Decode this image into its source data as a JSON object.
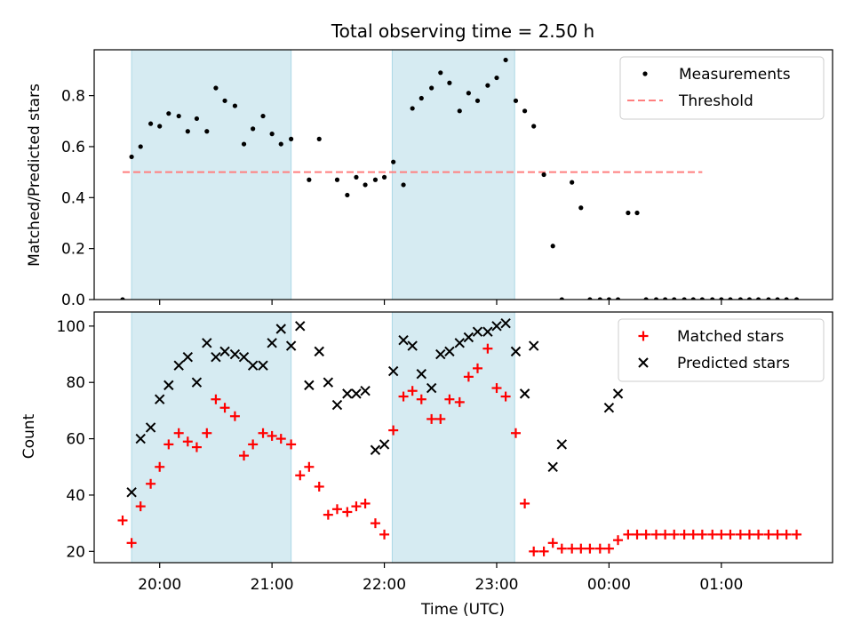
{
  "chart_data": {
    "title": "Total observing time = 2.50 h",
    "type": "scatter",
    "x_tick_labels": [
      "20:00",
      "21:00",
      "22:00",
      "23:00",
      "00:00",
      "01:00"
    ],
    "xlabel": "Time (UTC)",
    "observing_windows_hours": [
      [
        19.75,
        21.17
      ],
      [
        22.07,
        23.16
      ]
    ],
    "window_color": "#add8e6",
    "panels": [
      {
        "ylabel": "Matched/Predicted stars",
        "ylim": [
          0,
          0.98
        ],
        "y_ticks": [
          0.0,
          0.2,
          0.4,
          0.6,
          0.8
        ],
        "y_tick_labels": [
          "0.0",
          "0.2",
          "0.4",
          "0.6",
          "0.8"
        ],
        "legend_position": "top-right",
        "threshold": {
          "name": "Threshold",
          "value": 0.5,
          "x_range": [
            19.67,
            24.83
          ],
          "color": "#ff7f7f"
        },
        "measurements": {
          "name": "Measurements",
          "color": "#000000",
          "x": [
            19.67,
            19.75,
            19.83,
            19.92,
            20.0,
            20.08,
            20.17,
            20.25,
            20.33,
            20.42,
            20.5,
            20.58,
            20.67,
            20.75,
            20.83,
            20.92,
            21.0,
            21.08,
            21.17,
            21.33,
            21.42,
            21.58,
            21.67,
            21.75,
            21.83,
            21.92,
            22.0,
            22.08,
            22.17,
            22.25,
            22.33,
            22.42,
            22.5,
            22.58,
            22.67,
            22.75,
            22.83,
            22.92,
            23.0,
            23.08,
            23.17,
            23.25,
            23.33,
            23.42,
            23.5,
            23.58,
            23.67,
            23.75,
            23.83,
            23.92,
            24.0,
            24.08,
            24.17,
            24.25,
            24.33,
            24.42,
            24.5,
            24.58,
            24.67,
            24.75,
            24.83,
            24.92,
            25.0,
            25.08,
            25.17,
            25.25,
            25.33,
            25.42,
            25.5,
            25.58,
            25.67
          ],
          "y": [
            0.0,
            0.56,
            0.6,
            0.69,
            0.68,
            0.73,
            0.72,
            0.66,
            0.71,
            0.66,
            0.83,
            0.78,
            0.76,
            0.61,
            0.67,
            0.72,
            0.65,
            0.61,
            0.63,
            0.47,
            0.63,
            0.47,
            0.41,
            0.48,
            0.45,
            0.47,
            0.48,
            0.54,
            0.45,
            0.75,
            0.79,
            0.83,
            0.89,
            0.85,
            0.74,
            0.81,
            0.78,
            0.84,
            0.87,
            0.94,
            0.78,
            0.74,
            0.68,
            0.49,
            0.21,
            0.0,
            0.46,
            0.36,
            0.0,
            0.0,
            0.0,
            0.0,
            0.34,
            0.34,
            0.0,
            0.0,
            0.0,
            0.0,
            0.0,
            0.0,
            0.0,
            0.0,
            0.0,
            0.0,
            0.0,
            0.0,
            0.0,
            0.0,
            0.0,
            0.0,
            0.0
          ]
        }
      },
      {
        "ylabel": "Count",
        "ylim": [
          16,
          105
        ],
        "y_ticks": [
          20,
          40,
          60,
          80,
          100
        ],
        "y_tick_labels": [
          "20",
          "40",
          "60",
          "80",
          "100"
        ],
        "legend_position": "top-right",
        "series": [
          {
            "name": "Matched stars",
            "marker": "plus",
            "color": "#ff0000",
            "x": [
              19.67,
              19.75,
              19.83,
              19.92,
              20.0,
              20.08,
              20.17,
              20.25,
              20.33,
              20.42,
              20.5,
              20.58,
              20.67,
              20.75,
              20.83,
              20.92,
              21.0,
              21.08,
              21.17,
              21.25,
              21.33,
              21.42,
              21.5,
              21.58,
              21.67,
              21.75,
              21.83,
              21.92,
              22.0,
              22.08,
              22.17,
              22.25,
              22.33,
              22.42,
              22.5,
              22.58,
              22.67,
              22.75,
              22.83,
              22.92,
              23.0,
              23.08,
              23.17,
              23.25,
              23.33,
              23.42,
              23.5,
              23.58,
              23.67,
              23.75,
              23.83,
              23.92,
              24.0,
              24.08,
              24.17,
              24.25,
              24.33,
              24.42,
              24.5,
              24.58,
              24.67,
              24.75,
              24.83,
              24.92,
              25.0,
              25.08,
              25.17,
              25.25,
              25.33,
              25.42,
              25.5,
              25.58,
              25.67
            ],
            "y": [
              31,
              23,
              36,
              44,
              50,
              58,
              62,
              59,
              57,
              62,
              74,
              71,
              68,
              54,
              58,
              62,
              61,
              60,
              58,
              47,
              50,
              43,
              33,
              35,
              34,
              36,
              37,
              30,
              26,
              63,
              75,
              77,
              74,
              67,
              67,
              74,
              73,
              82,
              85,
              92,
              78,
              75,
              62,
              37,
              20,
              20,
              23,
              21,
              21,
              21,
              21,
              21,
              21,
              24,
              26,
              26,
              26,
              26,
              26,
              26,
              26,
              26,
              26,
              26,
              26,
              26,
              26,
              26,
              26,
              26,
              26,
              26,
              26
            ]
          },
          {
            "name": "Predicted stars",
            "marker": "x",
            "color": "#000000",
            "x": [
              19.75,
              19.83,
              19.92,
              20.0,
              20.08,
              20.17,
              20.25,
              20.33,
              20.42,
              20.5,
              20.58,
              20.67,
              20.75,
              20.83,
              20.92,
              21.0,
              21.08,
              21.17,
              21.25,
              21.33,
              21.42,
              21.5,
              21.58,
              21.67,
              21.75,
              21.83,
              21.92,
              22.0,
              22.08,
              22.17,
              22.25,
              22.33,
              22.42,
              22.5,
              22.58,
              22.67,
              22.75,
              22.83,
              22.92,
              23.0,
              23.08,
              23.17,
              23.25,
              23.33,
              23.5,
              23.58,
              24.0,
              24.08
            ],
            "y": [
              41,
              60,
              64,
              74,
              79,
              86,
              89,
              80,
              94,
              89,
              91,
              90,
              89,
              86,
              86,
              94,
              99,
              93,
              100,
              79,
              91,
              80,
              72,
              76,
              76,
              77,
              56,
              58,
              84,
              95,
              93,
              83,
              78,
              90,
              91,
              94,
              96,
              98,
              98,
              100,
              101,
              91,
              76,
              93,
              50,
              58,
              71,
              76
            ]
          }
        ]
      }
    ]
  }
}
